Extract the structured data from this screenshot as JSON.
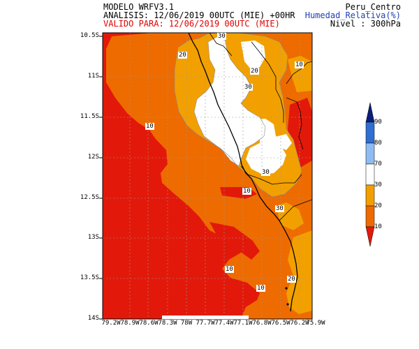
{
  "header": {
    "model": "MODELO WRFV3.1",
    "analysis": "ANALISIS: 12/06/2019 00UTC (MIE) +00HR",
    "valid": "VALIDO PARA: 12/06/2019 00UTC (MIE)",
    "domain": "Peru_Centro",
    "variable": "Humedad_Relativa(%)",
    "level": "Nivel : 300hPa"
  },
  "map": {
    "lat_labels": [
      "10.5S",
      "11S",
      "11.5S",
      "12S",
      "12.5S",
      "13S",
      "13.5S",
      "14S"
    ],
    "lon_labels": [
      "79.2W",
      "78.9W",
      "78.6W",
      "78.3W",
      "78W",
      "77.7W",
      "77.4W",
      "77.1W",
      "76.8W",
      "76.5W",
      "76.2W",
      "75.9W"
    ],
    "contour_labels": [
      "30",
      "20",
      "20",
      "30",
      "10",
      "10",
      "30",
      "10",
      "30",
      "20",
      "10",
      "10"
    ]
  },
  "colorbar": {
    "ticks": [
      "90",
      "80",
      "70",
      "30",
      "20",
      "10"
    ],
    "colors": [
      "#0a1f78",
      "#2f6fd1",
      "#8ebcf2",
      "#ffffff",
      "#f2a000",
      "#ee6a00",
      "#e21a0a"
    ]
  },
  "colors": {
    "field_low": "#e2190a",
    "field_mid": "#ee6b00",
    "field_high": "#f2a000",
    "moist": "#ffffff",
    "valid_text": "#e00000",
    "variable_text": "#2340b0"
  }
}
